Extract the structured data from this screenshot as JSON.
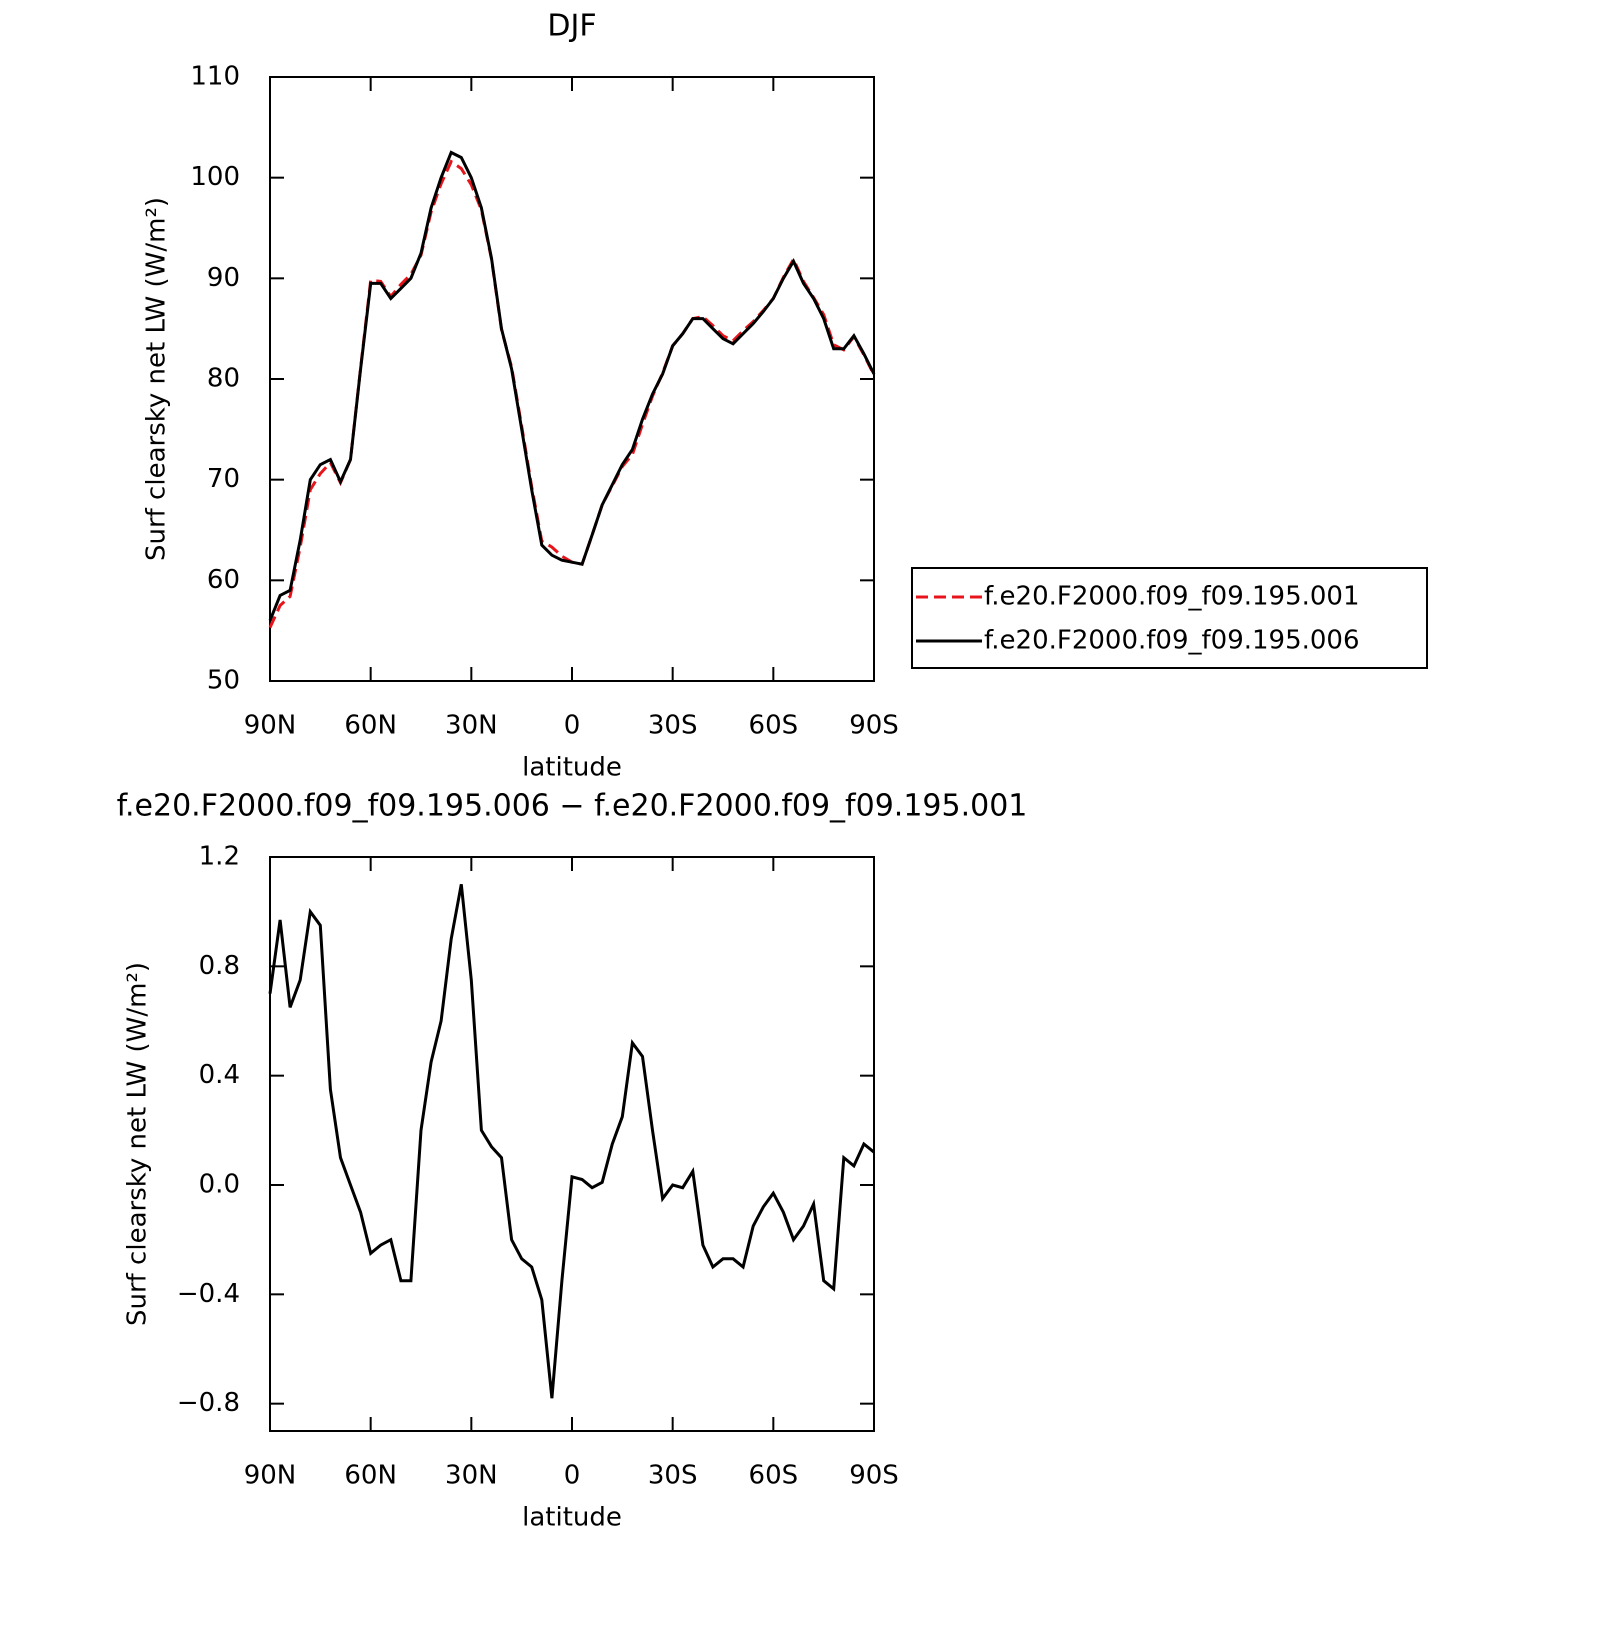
{
  "chart_data": [
    {
      "type": "line",
      "title": "DJF",
      "xlabel": "latitude",
      "ylabel": "Surf clearsky net LW (W/m²)",
      "x": [
        90,
        87,
        84,
        81,
        78,
        75,
        72,
        69,
        66,
        63,
        60,
        57,
        54,
        51,
        48,
        45,
        42,
        39,
        36,
        33,
        30,
        27,
        24,
        21,
        18,
        15,
        12,
        9,
        6,
        3,
        0,
        -3,
        -6,
        -9,
        -12,
        -15,
        -18,
        -21,
        -24,
        -27,
        -30,
        -33,
        -36,
        -39,
        -42,
        -45,
        -48,
        -51,
        -54,
        -57,
        -60,
        -63,
        -66,
        -69,
        -72,
        -75,
        -78,
        -81,
        -84,
        -87,
        -90
      ],
      "xlim": [
        90,
        -90
      ],
      "xticks": [
        {
          "value": 90,
          "label": "90N"
        },
        {
          "value": 60,
          "label": "60N"
        },
        {
          "value": 30,
          "label": "30N"
        },
        0,
        {
          "value": -30,
          "label": "30S"
        },
        {
          "value": -60,
          "label": "60S"
        },
        {
          "value": -90,
          "label": "90S"
        }
      ],
      "ylim": [
        50,
        110
      ],
      "yticks": [
        50,
        60,
        70,
        80,
        90,
        100,
        110
      ],
      "legend": "right",
      "series": [
        {
          "name": "f.e20.F2000.f09_f09.195.001",
          "color": "#e8141b",
          "dashed": true,
          "values": [
            55.3,
            57.5,
            58.4,
            63.3,
            69,
            70.6,
            71.7,
            69.7,
            72,
            81.1,
            89.8,
            89.7,
            88.2,
            89.4,
            90.4,
            92.3,
            96.6,
            99.4,
            101.6,
            100.9,
            99.3,
            96.8,
            91.9,
            84.9,
            81.2,
            75.3,
            69.3,
            63.9,
            63.3,
            62.4,
            61.8,
            61.6,
            64.5,
            67.5,
            69.4,
            71.3,
            72.5,
            75.5,
            78.3,
            80.6,
            83.3,
            84.5,
            86,
            86.2,
            85.3,
            84.3,
            83.8,
            84.8,
            85.7,
            86.8,
            88,
            90.1,
            91.9,
            89.7,
            88.1,
            86.4,
            83.4,
            82.9,
            84.2,
            82.4,
            80.4
          ]
        },
        {
          "name": "f.e20.F2000.f09_f09.195.006",
          "color": "#000000",
          "dashed": false,
          "values": [
            56,
            58.5,
            59,
            64,
            70,
            71.5,
            72,
            69.8,
            72,
            81,
            89.5,
            89.5,
            88,
            89,
            90,
            92.5,
            97,
            100,
            102.5,
            102,
            100,
            97,
            92,
            85,
            81,
            75,
            69,
            63.5,
            62.5,
            62,
            61.8,
            61.6,
            64.5,
            67.5,
            69.5,
            71.5,
            73,
            76,
            78.5,
            80.5,
            83.3,
            84.5,
            86,
            86,
            85,
            84,
            83.5,
            84.5,
            85.5,
            86.7,
            88,
            90,
            91.7,
            89.5,
            88,
            86,
            83,
            83,
            84.3,
            82.5,
            80.5
          ]
        }
      ]
    },
    {
      "type": "line",
      "title": "f.e20.F2000.f09_f09.195.006 − f.e20.F2000.f09_f09.195.001",
      "xlabel": "latitude",
      "ylabel": "Surf clearsky net LW (W/m²)",
      "x": [
        90,
        87,
        84,
        81,
        78,
        75,
        72,
        69,
        66,
        63,
        60,
        57,
        54,
        51,
        48,
        45,
        42,
        39,
        36,
        33,
        30,
        27,
        24,
        21,
        18,
        15,
        12,
        9,
        6,
        3,
        0,
        -3,
        -6,
        -9,
        -12,
        -15,
        -18,
        -21,
        -24,
        -27,
        -30,
        -33,
        -36,
        -39,
        -42,
        -45,
        -48,
        -51,
        -54,
        -57,
        -60,
        -63,
        -66,
        -69,
        -72,
        -75,
        -78,
        -81,
        -84,
        -87,
        -90
      ],
      "xlim": [
        90,
        -90
      ],
      "xticks": [
        {
          "value": 90,
          "label": "90N"
        },
        {
          "value": 60,
          "label": "60N"
        },
        {
          "value": 30,
          "label": "30N"
        },
        0,
        {
          "value": -30,
          "label": "30S"
        },
        {
          "value": -60,
          "label": "60S"
        },
        {
          "value": -90,
          "label": "90S"
        }
      ],
      "ylim": [
        -0.9,
        1.2
      ],
      "yticks": [
        {
          "value": -0.8,
          "label": "−0.8"
        },
        {
          "value": -0.4,
          "label": "−0.4"
        },
        {
          "value": 0,
          "label": "0.0"
        },
        0.4,
        0.8,
        1.2
      ],
      "series": [
        {
          "color": "#000000",
          "dashed": false,
          "values": [
            0.7,
            0.97,
            0.65,
            0.75,
            1.0,
            0.95,
            0.35,
            0.1,
            0.0,
            -0.1,
            -0.25,
            -0.22,
            -0.2,
            -0.35,
            -0.35,
            0.2,
            0.45,
            0.6,
            0.9,
            1.1,
            0.75,
            0.2,
            0.14,
            0.1,
            -0.2,
            -0.27,
            -0.3,
            -0.42,
            -0.78,
            -0.35,
            0.03,
            0.02,
            -0.01,
            0.01,
            0.15,
            0.25,
            0.52,
            0.47,
            0.2,
            -0.05,
            0.0,
            -0.01,
            0.05,
            -0.22,
            -0.3,
            -0.27,
            -0.27,
            -0.3,
            -0.15,
            -0.08,
            -0.03,
            -0.1,
            -0.2,
            -0.15,
            -0.07,
            -0.35,
            -0.38,
            0.1,
            0.07,
            0.15,
            0.12
          ]
        }
      ]
    }
  ]
}
